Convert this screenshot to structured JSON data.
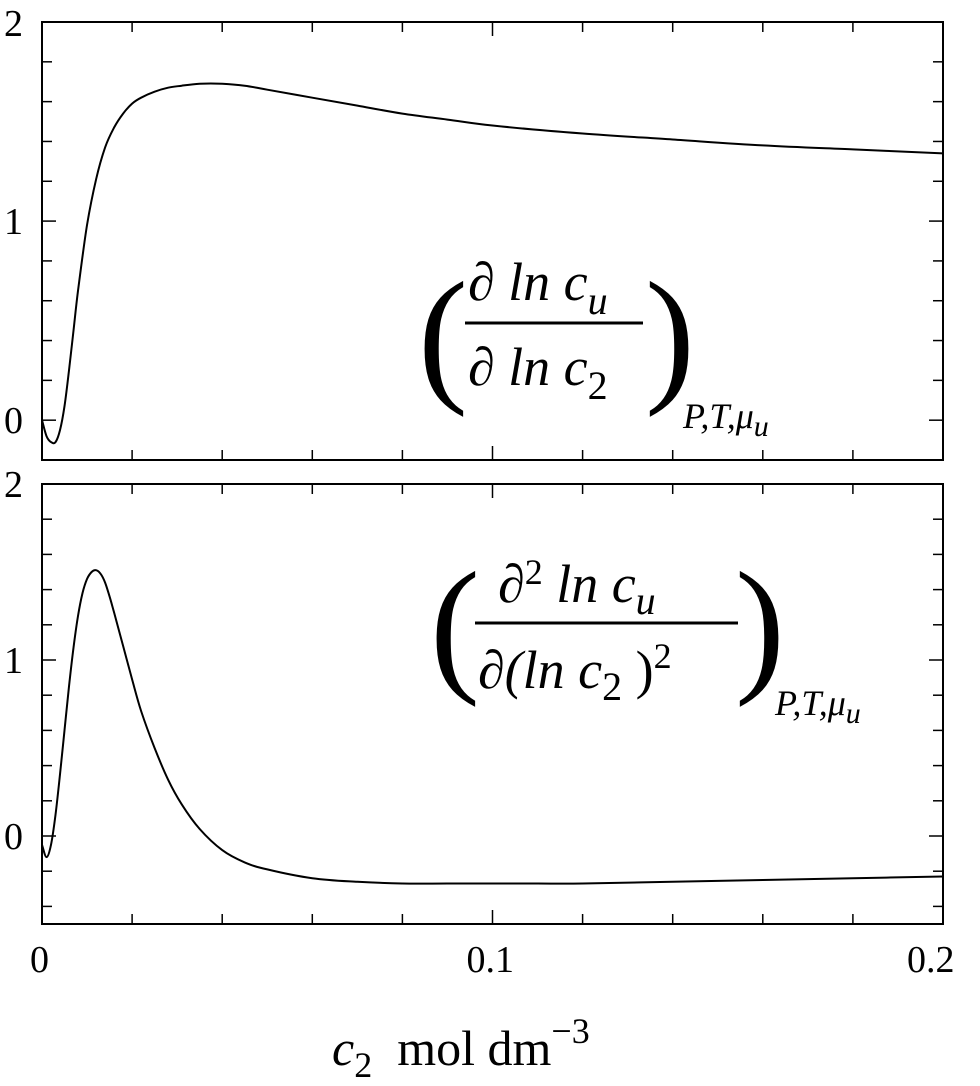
{
  "chart_data": [
    {
      "type": "line",
      "title": "",
      "xlabel": "",
      "ylabel": "",
      "xlim": [
        0,
        0.2
      ],
      "ylim": [
        -0.2,
        2
      ],
      "xticks": [
        0,
        0.1,
        0.2
      ],
      "yticks": [
        0,
        1,
        2
      ],
      "grid": false,
      "annotation": {
        "open": "(",
        "close": ")",
        "numerator": "∂ ln c",
        "numerator_sub": "u",
        "denominator": "∂ ln c",
        "denominator_sub": "2",
        "subscript": "P,T,μ",
        "subscript_sub": "u"
      },
      "series": [
        {
          "x": [
            0,
            0.001,
            0.002,
            0.003,
            0.004,
            0.005,
            0.006,
            0.007,
            0.008,
            0.01,
            0.012,
            0.014,
            0.016,
            0.018,
            0.02,
            0.022,
            0.025,
            0.028,
            0.031,
            0.035,
            0.04,
            0.045,
            0.05,
            0.06,
            0.07,
            0.08,
            0.09,
            0.1,
            0.12,
            0.14,
            0.16,
            0.18,
            0.2
          ],
          "y": [
            0.0,
            -0.08,
            -0.11,
            -0.11,
            -0.05,
            0.07,
            0.25,
            0.45,
            0.65,
            0.98,
            1.21,
            1.37,
            1.47,
            1.54,
            1.59,
            1.62,
            1.65,
            1.67,
            1.68,
            1.69,
            1.69,
            1.68,
            1.66,
            1.62,
            1.58,
            1.54,
            1.51,
            1.48,
            1.44,
            1.41,
            1.38,
            1.36,
            1.34
          ]
        }
      ]
    },
    {
      "type": "line",
      "title": "",
      "xlabel": "c2  mol dm−3",
      "ylabel": "",
      "xlim": [
        0,
        0.2
      ],
      "ylim": [
        -0.5,
        2
      ],
      "xticks": [
        0,
        0.1,
        0.2
      ],
      "xticklabels": [
        "0",
        "0.1",
        "0.2"
      ],
      "yticks": [
        0,
        1,
        2
      ],
      "grid": false,
      "annotation": {
        "open": "(",
        "close": ")",
        "numerator": "∂",
        "numerator_sup": "2",
        "numerator_tail": " ln c",
        "numerator_sub": "u",
        "denominator": "∂(ln c",
        "denominator_sub": "2",
        "denominator_tail": " )",
        "denominator_sup": "2",
        "subscript": "P,T,μ",
        "subscript_sub": "u"
      },
      "series": [
        {
          "x": [
            0,
            0.001,
            0.002,
            0.003,
            0.004,
            0.005,
            0.006,
            0.007,
            0.008,
            0.009,
            0.01,
            0.011,
            0.012,
            0.013,
            0.014,
            0.015,
            0.016,
            0.018,
            0.02,
            0.022,
            0.025,
            0.028,
            0.031,
            0.035,
            0.04,
            0.045,
            0.05,
            0.06,
            0.07,
            0.08,
            0.09,
            0.1,
            0.11,
            0.12,
            0.14,
            0.16,
            0.18,
            0.2
          ],
          "y": [
            -0.05,
            -0.12,
            -0.05,
            0.12,
            0.35,
            0.6,
            0.85,
            1.07,
            1.25,
            1.38,
            1.46,
            1.5,
            1.51,
            1.49,
            1.44,
            1.36,
            1.27,
            1.08,
            0.89,
            0.71,
            0.5,
            0.32,
            0.18,
            0.04,
            -0.08,
            -0.15,
            -0.19,
            -0.24,
            -0.26,
            -0.27,
            -0.27,
            -0.27,
            -0.27,
            -0.27,
            -0.26,
            -0.25,
            -0.24,
            -0.23
          ]
        }
      ]
    }
  ]
}
